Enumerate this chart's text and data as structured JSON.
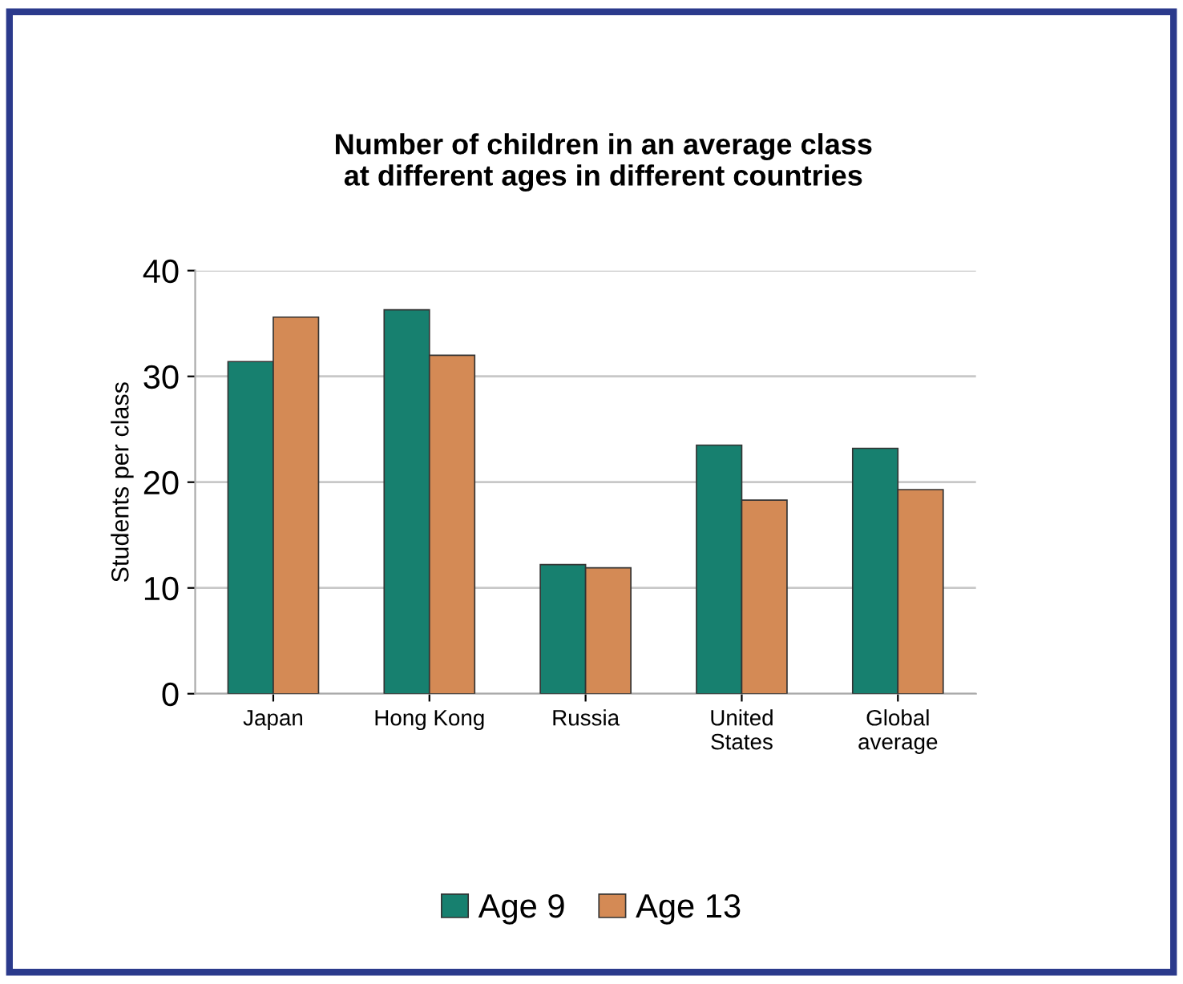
{
  "chart_data": {
    "type": "bar",
    "title": "Number of children in an average class\nat different ages in different countries",
    "ylabel": "Students per class",
    "categories": [
      "Japan",
      "Hong Kong",
      "Russia",
      "United\nStates",
      "Global\naverage"
    ],
    "series": [
      {
        "name": "Age 9",
        "color": "#17806f",
        "values": [
          31.4,
          36.3,
          12.2,
          23.5,
          23.2
        ]
      },
      {
        "name": "Age 13",
        "color": "#d48a55",
        "values": [
          35.6,
          32.0,
          11.9,
          18.3,
          19.3
        ]
      }
    ],
    "ylim": [
      0,
      40
    ],
    "yticks": [
      0,
      10,
      20,
      30,
      40
    ],
    "grid": "y",
    "legend": "bottom"
  }
}
